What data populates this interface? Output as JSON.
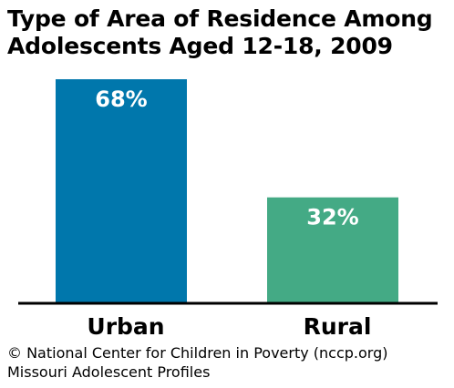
{
  "chart_data": {
    "type": "bar",
    "title_lines": [
      "Type of Area of Residence Among",
      "Adolescents Aged 12-18, 2009"
    ],
    "categories": [
      "Urban",
      "Rural"
    ],
    "values": [
      68,
      32
    ],
    "value_labels": [
      "68%",
      "32%"
    ],
    "colors": [
      "#0077ac",
      "#44aa85"
    ],
    "ylim": [
      0,
      68
    ],
    "xlabel": "",
    "ylabel": "",
    "grid": false,
    "legend": "none"
  },
  "footer": {
    "line1": "© National Center for Children in Poverty (nccp.org)",
    "line2": "Missouri Adolescent Profiles"
  }
}
